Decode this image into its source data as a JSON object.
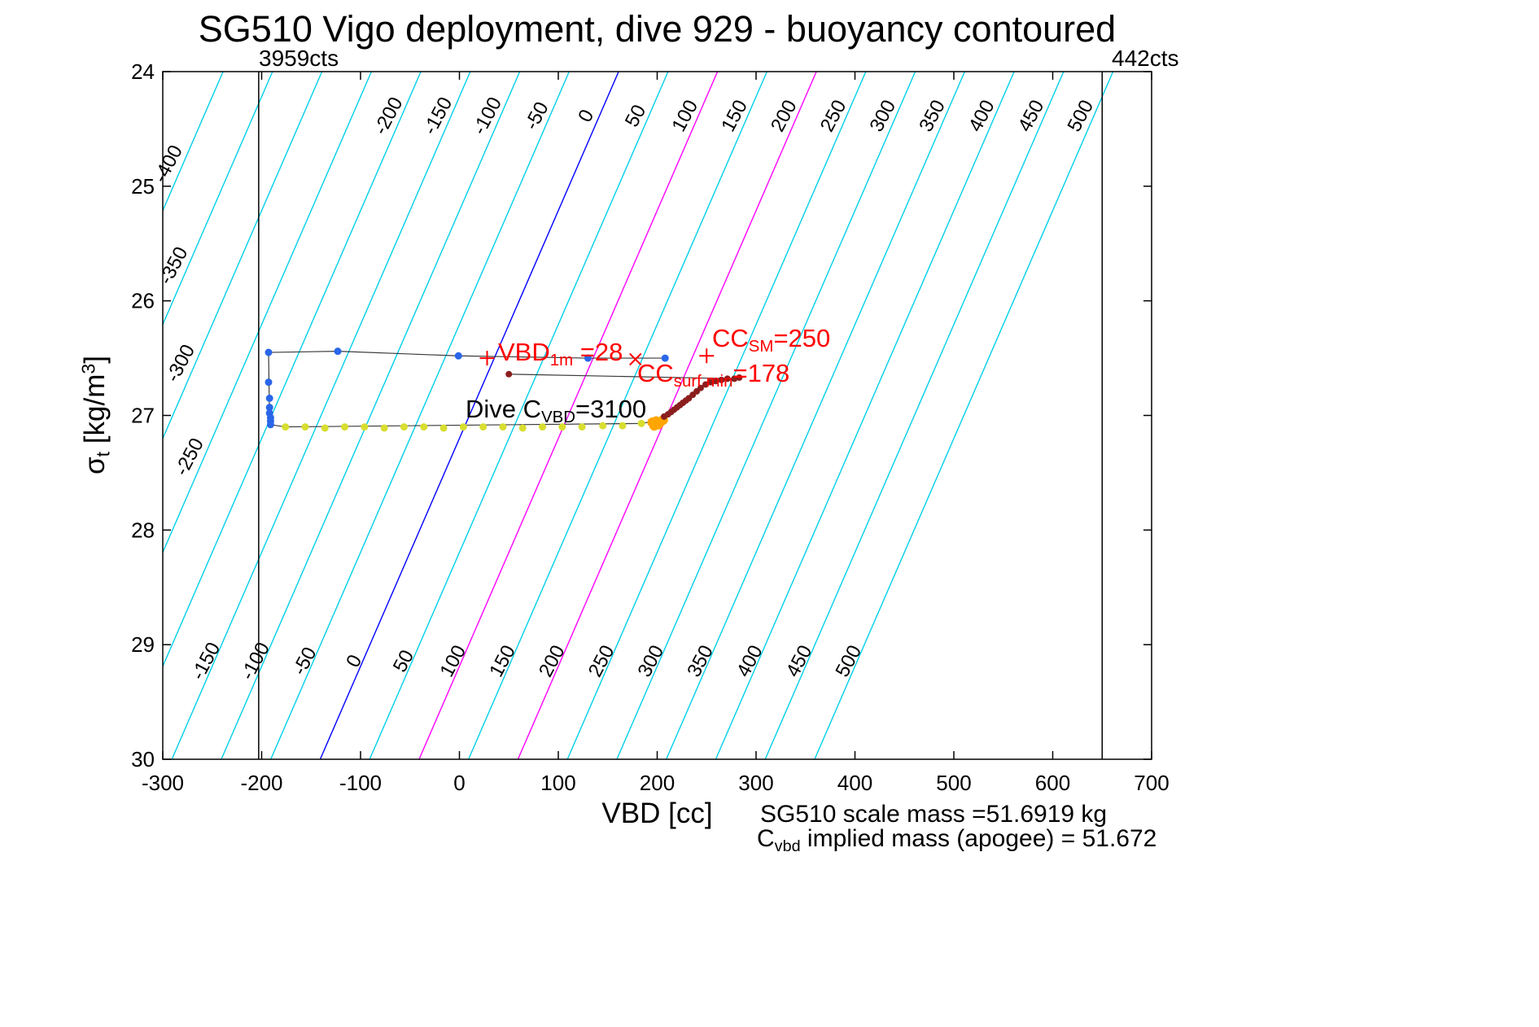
{
  "title": "SG510 Vigo deployment, dive 929 - buoyancy contoured",
  "axis": {
    "xlabel": "VBD [cc]",
    "ylabel_parts": {
      "pre": "σ",
      "sub": "t",
      "mid": " [kg/m",
      "sup": "3",
      "post": "]"
    }
  },
  "counts_labels": {
    "left": "3959cts",
    "right": "442cts"
  },
  "annotations": {
    "vbd1m": {
      "pre": "VBD",
      "sub": "1m",
      "post": " =28"
    },
    "ccsm": {
      "pre": "CC",
      "sub": "SM",
      "post": "=250"
    },
    "ccsurf": {
      "pre": "CC",
      "sub": "surf min",
      "post": "=178"
    },
    "divec": {
      "pre": "Dive C",
      "sub": "VBD",
      "post": "=3100"
    }
  },
  "footer": {
    "line1": "SG510 scale mass =51.6919 kg",
    "line2": {
      "pre": "C",
      "sub": "vbd",
      "post": " implied mass (apogee) = 51.672"
    }
  },
  "chart_data": {
    "type": "scatter",
    "title": "SG510 Vigo deployment, dive 929 - buoyancy contoured",
    "xlabel": "VBD [cc]",
    "ylabel": "sigma_t [kg/m3]",
    "xlim": [
      -300,
      700
    ],
    "ylim": [
      24,
      30
    ],
    "y_descends": true,
    "x_ticks": [
      -300,
      -200,
      -100,
      0,
      100,
      200,
      300,
      400,
      500,
      600,
      700
    ],
    "y_ticks": [
      24,
      25,
      26,
      27,
      28,
      29,
      30
    ],
    "contours": {
      "values": [
        -400,
        -350,
        -300,
        -250,
        -200,
        -150,
        -100,
        -50,
        0,
        50,
        100,
        150,
        200,
        250,
        300,
        350,
        400,
        450,
        500
      ],
      "vbd_top_at_zero": 161,
      "dvbd_dsigma": -50.3,
      "magenta": [
        100,
        200
      ],
      "left_label_y": {
        "-400": 205,
        "-350": 330,
        "-300": 450,
        "-250": 565
      }
    },
    "vlines": [
      {
        "x": -203,
        "label": "3959cts"
      },
      {
        "x": 650,
        "label": "442cts"
      }
    ],
    "markers": [
      {
        "type": "plus",
        "x": 28,
        "y": 26.5,
        "label": "VBD_1m =28"
      },
      {
        "type": "plus",
        "x": 250,
        "y": 26.48,
        "label": "CC_SM=250"
      },
      {
        "type": "x",
        "x": 178,
        "y": 26.51,
        "label": "CC_surf min=178"
      }
    ],
    "series": [
      {
        "name": "climb-blue",
        "color": "#2a66e8",
        "r": 4.5,
        "points": [
          [
            -193,
            26.45
          ],
          [
            -123,
            26.44
          ],
          [
            -1,
            26.48
          ],
          [
            130,
            26.5
          ],
          [
            208,
            26.5
          ],
          [
            -193,
            26.71
          ],
          [
            -192,
            26.85
          ],
          [
            -192,
            26.93
          ],
          [
            -192,
            26.98
          ],
          [
            -191,
            27.02
          ],
          [
            -191,
            27.05
          ],
          [
            -191,
            27.08
          ]
        ]
      },
      {
        "name": "dive-yellow",
        "color": "#d8de30",
        "r": 4.5,
        "points": [
          [
            -176,
            27.1
          ],
          [
            -156,
            27.1
          ],
          [
            -136,
            27.11
          ],
          [
            -116,
            27.1
          ],
          [
            -96,
            27.1
          ],
          [
            -76,
            27.11
          ],
          [
            -56,
            27.1
          ],
          [
            -36,
            27.1
          ],
          [
            -16,
            27.11
          ],
          [
            4,
            27.1
          ],
          [
            24,
            27.1
          ],
          [
            44,
            27.1
          ],
          [
            64,
            27.11
          ],
          [
            84,
            27.1
          ],
          [
            104,
            27.1
          ],
          [
            124,
            27.1
          ],
          [
            145,
            27.09
          ],
          [
            165,
            27.09
          ],
          [
            184,
            27.07
          ]
        ]
      },
      {
        "name": "apogee-orange",
        "color": "#ffa500",
        "r": 6,
        "points": [
          [
            195,
            27.06
          ],
          [
            199,
            27.05
          ],
          [
            203,
            27.06
          ],
          [
            206,
            27.04
          ],
          [
            201,
            27.08
          ],
          [
            197,
            27.09
          ]
        ]
      },
      {
        "name": "surface-darkred",
        "color": "#8b1e1e",
        "r": 4,
        "points": [
          [
            50,
            26.64
          ],
          [
            207,
            27.01
          ],
          [
            211,
            26.99
          ],
          [
            214,
            26.97
          ],
          [
            217,
            26.95
          ],
          [
            220,
            26.93
          ],
          [
            223,
            26.91
          ],
          [
            226,
            26.89
          ],
          [
            229,
            26.87
          ],
          [
            232,
            26.85
          ],
          [
            236,
            26.82
          ],
          [
            240,
            26.79
          ],
          [
            244,
            26.76
          ],
          [
            249,
            26.73
          ],
          [
            254,
            26.71
          ],
          [
            259,
            26.7
          ],
          [
            265,
            26.69
          ],
          [
            271,
            26.68
          ],
          [
            278,
            26.68
          ],
          [
            283,
            26.67
          ]
        ]
      }
    ],
    "paths": [
      [
        [
          -193,
          26.45
        ],
        [
          -123,
          26.44
        ],
        [
          -1,
          26.48
        ],
        [
          130,
          26.5
        ],
        [
          208,
          26.5
        ]
      ],
      [
        [
          -193,
          26.45
        ],
        [
          -192,
          27.08
        ],
        [
          -176,
          27.1
        ],
        [
          184,
          27.07
        ],
        [
          197,
          27.05
        ]
      ],
      [
        [
          197,
          27.05
        ],
        [
          207,
          27.01
        ],
        [
          230,
          26.86
        ],
        [
          249,
          26.73
        ],
        [
          283,
          26.67
        ]
      ],
      [
        [
          50,
          26.64
        ],
        [
          283,
          26.68
        ]
      ]
    ],
    "colors": {
      "contour": "#00d0e8",
      "contour_zero": "#0000ff",
      "contour_highlight": "#ff00ff",
      "track": "#3a3a3a",
      "marker": "#ff0000",
      "annotation_red": "#ff0000",
      "axis": "#000000"
    }
  }
}
